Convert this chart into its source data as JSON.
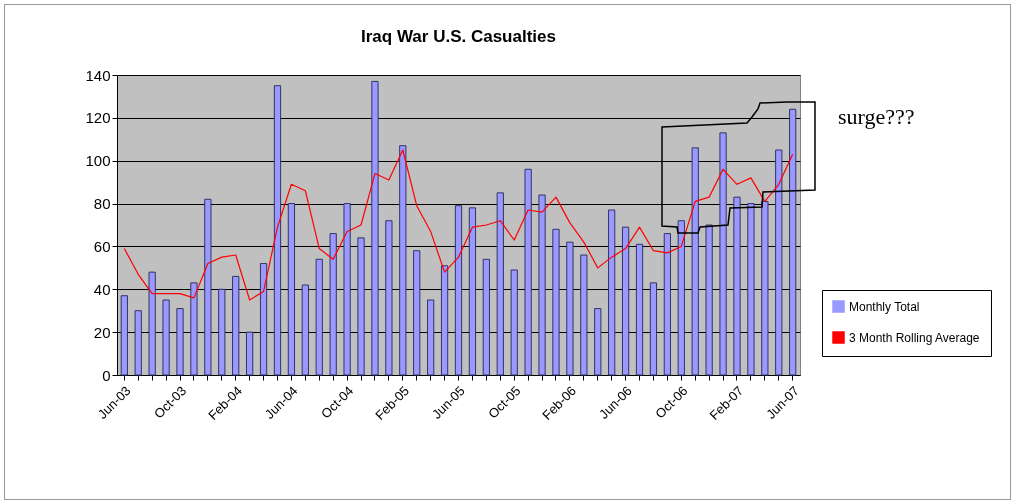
{
  "chart_data": {
    "type": "bar",
    "title": "Iraq War U.S. Casualties",
    "categories": [
      "Jun-03",
      null,
      null,
      null,
      "Oct-03",
      null,
      null,
      null,
      "Feb-04",
      null,
      null,
      null,
      "Jun-04",
      null,
      null,
      null,
      "Oct-04",
      null,
      null,
      null,
      "Feb-05",
      null,
      null,
      null,
      "Jun-05",
      null,
      null,
      null,
      "Oct-05",
      null,
      null,
      null,
      "Feb-06",
      null,
      null,
      null,
      "Jun-06",
      null,
      null,
      null,
      "Oct-06",
      null,
      null,
      null,
      "Feb-07",
      null,
      null,
      null,
      "Jun-07"
    ],
    "series": [
      {
        "name": "Monthly Total",
        "color": "#9999ff",
        "values": [
          37,
          30,
          48,
          35,
          31,
          43,
          82,
          40,
          46,
          20,
          52,
          135,
          80,
          42,
          54,
          66,
          80,
          64,
          137,
          72,
          107,
          58,
          35,
          51,
          79,
          78,
          54,
          85,
          49,
          96,
          84,
          68,
          62,
          56,
          31,
          77,
          69,
          61,
          43,
          66,
          72,
          106,
          70,
          113,
          83,
          80,
          81,
          105,
          124
        ]
      },
      {
        "name": "3 Month Rolling Average",
        "type": "line",
        "color": "#ff0000",
        "values": [
          59,
          47,
          38,
          38,
          38,
          36,
          52,
          55,
          56,
          35,
          39,
          69,
          89,
          86,
          59,
          54,
          67,
          70,
          94,
          91,
          105,
          79,
          67,
          48,
          55,
          69,
          70,
          72,
          63,
          77,
          76,
          83,
          71,
          62,
          50,
          55,
          59,
          69,
          58,
          57,
          60,
          81,
          83,
          96,
          89,
          92,
          81,
          89,
          103
        ]
      }
    ],
    "ylim": [
      0,
      140
    ],
    "yticks": [
      0,
      20,
      40,
      60,
      80,
      100,
      120,
      140
    ],
    "grid": "y",
    "legend": "right",
    "marker": "none",
    "annotations": [
      "surge???"
    ]
  }
}
